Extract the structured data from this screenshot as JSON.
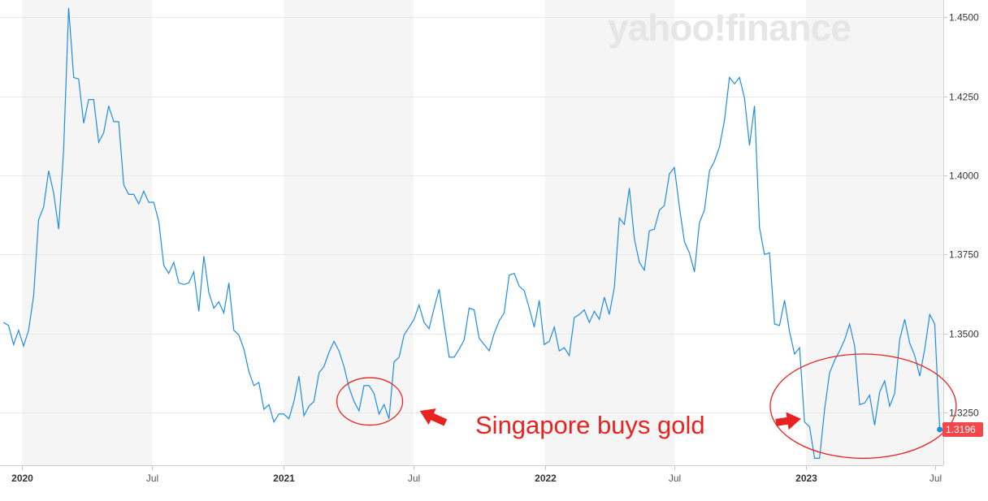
{
  "chart_data": {
    "type": "line",
    "series": [
      {
        "color": "#1f8de0",
        "points": [
          [
            "2019-12-06",
            1.3535
          ],
          [
            "2019-12-13",
            1.3525
          ],
          [
            "2019-12-20",
            1.3465
          ],
          [
            "2019-12-27",
            1.351
          ],
          [
            "2020-01-03",
            1.346
          ],
          [
            "2020-01-10",
            1.351
          ],
          [
            "2020-01-17",
            1.362
          ],
          [
            "2020-01-24",
            1.386
          ],
          [
            "2020-01-31",
            1.39
          ],
          [
            "2020-02-07",
            1.4015
          ],
          [
            "2020-02-14",
            1.3945
          ],
          [
            "2020-02-21",
            1.383
          ],
          [
            "2020-02-28",
            1.408
          ],
          [
            "2020-03-06",
            1.453
          ],
          [
            "2020-03-13",
            1.431
          ],
          [
            "2020-03-20",
            1.4305
          ],
          [
            "2020-03-27",
            1.4165
          ],
          [
            "2020-04-03",
            1.424
          ],
          [
            "2020-04-10",
            1.424
          ],
          [
            "2020-04-17",
            1.4105
          ],
          [
            "2020-04-24",
            1.4135
          ],
          [
            "2020-05-01",
            1.422
          ],
          [
            "2020-05-08",
            1.417
          ],
          [
            "2020-05-15",
            1.417
          ],
          [
            "2020-05-22",
            1.397
          ],
          [
            "2020-05-29",
            1.394
          ],
          [
            "2020-06-05",
            1.394
          ],
          [
            "2020-06-12",
            1.391
          ],
          [
            "2020-06-19",
            1.395
          ],
          [
            "2020-06-26",
            1.3915
          ],
          [
            "2020-07-03",
            1.3915
          ],
          [
            "2020-07-10",
            1.3855
          ],
          [
            "2020-07-17",
            1.3715
          ],
          [
            "2020-07-24",
            1.369
          ],
          [
            "2020-07-31",
            1.3725
          ],
          [
            "2020-08-07",
            1.366
          ],
          [
            "2020-08-14",
            1.3655
          ],
          [
            "2020-08-21",
            1.366
          ],
          [
            "2020-08-28",
            1.3695
          ],
          [
            "2020-09-04",
            1.357
          ],
          [
            "2020-09-11",
            1.3745
          ],
          [
            "2020-09-18",
            1.363
          ],
          [
            "2020-09-25",
            1.358
          ],
          [
            "2020-10-02",
            1.36
          ],
          [
            "2020-10-09",
            1.3565
          ],
          [
            "2020-10-16",
            1.366
          ],
          [
            "2020-10-23",
            1.351
          ],
          [
            "2020-10-30",
            1.3495
          ],
          [
            "2020-11-06",
            1.345
          ],
          [
            "2020-11-13",
            1.338
          ],
          [
            "2020-11-20",
            1.3335
          ],
          [
            "2020-11-27",
            1.3345
          ],
          [
            "2020-12-04",
            1.326
          ],
          [
            "2020-12-11",
            1.3275
          ],
          [
            "2020-12-18",
            1.322
          ],
          [
            "2020-12-25",
            1.3245
          ],
          [
            "2021-01-01",
            1.3245
          ],
          [
            "2021-01-08",
            1.323
          ],
          [
            "2021-01-15",
            1.3285
          ],
          [
            "2021-01-22",
            1.3365
          ],
          [
            "2021-01-29",
            1.324
          ],
          [
            "2021-02-05",
            1.327
          ],
          [
            "2021-02-12",
            1.3285
          ],
          [
            "2021-02-19",
            1.3375
          ],
          [
            "2021-02-26",
            1.3395
          ],
          [
            "2021-03-05",
            1.344
          ],
          [
            "2021-03-12",
            1.3475
          ],
          [
            "2021-03-19",
            1.3445
          ],
          [
            "2021-03-26",
            1.3395
          ],
          [
            "2021-04-02",
            1.333
          ],
          [
            "2021-04-09",
            1.3285
          ],
          [
            "2021-04-16",
            1.3255
          ],
          [
            "2021-04-23",
            1.3335
          ],
          [
            "2021-04-30",
            1.3335
          ],
          [
            "2021-05-07",
            1.331
          ],
          [
            "2021-05-14",
            1.3245
          ],
          [
            "2021-05-21",
            1.3275
          ],
          [
            "2021-05-28",
            1.323
          ],
          [
            "2021-06-04",
            1.341
          ],
          [
            "2021-06-11",
            1.3425
          ],
          [
            "2021-06-18",
            1.3495
          ],
          [
            "2021-06-25",
            1.352
          ],
          [
            "2021-07-02",
            1.3545
          ],
          [
            "2021-07-09",
            1.359
          ],
          [
            "2021-07-16",
            1.3535
          ],
          [
            "2021-07-23",
            1.3515
          ],
          [
            "2021-07-30",
            1.358
          ],
          [
            "2021-08-06",
            1.364
          ],
          [
            "2021-08-13",
            1.353
          ],
          [
            "2021-08-20",
            1.3425
          ],
          [
            "2021-08-27",
            1.3425
          ],
          [
            "2021-09-03",
            1.345
          ],
          [
            "2021-09-10",
            1.348
          ],
          [
            "2021-09-17",
            1.358
          ],
          [
            "2021-09-24",
            1.3575
          ],
          [
            "2021-10-01",
            1.3485
          ],
          [
            "2021-10-08",
            1.3465
          ],
          [
            "2021-10-15",
            1.3445
          ],
          [
            "2021-10-22",
            1.35
          ],
          [
            "2021-10-29",
            1.354
          ],
          [
            "2021-11-05",
            1.3565
          ],
          [
            "2021-11-12",
            1.3685
          ],
          [
            "2021-11-19",
            1.369
          ],
          [
            "2021-11-26",
            1.365
          ],
          [
            "2021-12-03",
            1.3635
          ],
          [
            "2021-12-10",
            1.358
          ],
          [
            "2021-12-17",
            1.352
          ],
          [
            "2021-12-24",
            1.3605
          ],
          [
            "2021-12-31",
            1.3465
          ],
          [
            "2022-01-07",
            1.3475
          ],
          [
            "2022-01-14",
            1.352
          ],
          [
            "2022-01-21",
            1.3445
          ],
          [
            "2022-01-28",
            1.3455
          ],
          [
            "2022-02-04",
            1.343
          ],
          [
            "2022-02-11",
            1.355
          ],
          [
            "2022-02-18",
            1.356
          ],
          [
            "2022-02-25",
            1.3575
          ],
          [
            "2022-03-04",
            1.3535
          ],
          [
            "2022-03-11",
            1.357
          ],
          [
            "2022-03-18",
            1.3545
          ],
          [
            "2022-03-25",
            1.3615
          ],
          [
            "2022-04-01",
            1.356
          ],
          [
            "2022-04-08",
            1.3645
          ],
          [
            "2022-04-15",
            1.3865
          ],
          [
            "2022-04-22",
            1.3845
          ],
          [
            "2022-04-29",
            1.396
          ],
          [
            "2022-05-06",
            1.38
          ],
          [
            "2022-05-13",
            1.3725
          ],
          [
            "2022-05-20",
            1.37
          ],
          [
            "2022-05-27",
            1.3825
          ],
          [
            "2022-06-03",
            1.383
          ],
          [
            "2022-06-10",
            1.389
          ],
          [
            "2022-06-17",
            1.3905
          ],
          [
            "2022-06-24",
            1.4005
          ],
          [
            "2022-07-01",
            1.4025
          ],
          [
            "2022-07-08",
            1.39
          ],
          [
            "2022-07-15",
            1.379
          ],
          [
            "2022-07-22",
            1.3755
          ],
          [
            "2022-07-29",
            1.3695
          ],
          [
            "2022-08-05",
            1.385
          ],
          [
            "2022-08-12",
            1.389
          ],
          [
            "2022-08-19",
            1.4015
          ],
          [
            "2022-08-26",
            1.4045
          ],
          [
            "2022-09-02",
            1.409
          ],
          [
            "2022-09-09",
            1.4175
          ],
          [
            "2022-09-16",
            1.431
          ],
          [
            "2022-09-23",
            1.429
          ],
          [
            "2022-09-30",
            1.431
          ],
          [
            "2022-10-07",
            1.4245
          ],
          [
            "2022-10-14",
            1.4095
          ],
          [
            "2022-10-21",
            1.422
          ],
          [
            "2022-10-28",
            1.3835
          ],
          [
            "2022-11-04",
            1.375
          ],
          [
            "2022-11-11",
            1.3755
          ],
          [
            "2022-11-18",
            1.353
          ],
          [
            "2022-11-25",
            1.3525
          ],
          [
            "2022-12-02",
            1.3605
          ],
          [
            "2022-12-09",
            1.3505
          ],
          [
            "2022-12-16",
            1.3435
          ],
          [
            "2022-12-23",
            1.3455
          ],
          [
            "2022-12-30",
            1.322
          ],
          [
            "2023-01-06",
            1.3205
          ],
          [
            "2023-01-13",
            1.3105
          ],
          [
            "2023-01-20",
            1.3105
          ],
          [
            "2023-01-27",
            1.326
          ],
          [
            "2023-02-03",
            1.3375
          ],
          [
            "2023-02-10",
            1.3415
          ],
          [
            "2023-02-17",
            1.3445
          ],
          [
            "2023-02-24",
            1.348
          ],
          [
            "2023-03-03",
            1.353
          ],
          [
            "2023-03-10",
            1.346
          ],
          [
            "2023-03-17",
            1.3275
          ],
          [
            "2023-03-24",
            1.328
          ],
          [
            "2023-03-31",
            1.3305
          ],
          [
            "2023-04-07",
            1.321
          ],
          [
            "2023-04-14",
            1.3315
          ],
          [
            "2023-04-21",
            1.335
          ],
          [
            "2023-04-28",
            1.327
          ],
          [
            "2023-05-05",
            1.331
          ],
          [
            "2023-05-12",
            1.348
          ],
          [
            "2023-05-19",
            1.3545
          ],
          [
            "2023-05-26",
            1.347
          ],
          [
            "2023-06-02",
            1.343
          ],
          [
            "2023-06-09",
            1.3365
          ],
          [
            "2023-06-16",
            1.345
          ],
          [
            "2023-06-23",
            1.356
          ],
          [
            "2023-06-30",
            1.353
          ],
          [
            "2023-07-07",
            1.3196
          ]
        ]
      }
    ],
    "x_ticks": [
      {
        "date": "2020-01-01",
        "label": "2020",
        "bold": true
      },
      {
        "date": "2020-07-01",
        "label": "Jul",
        "bold": false
      },
      {
        "date": "2021-01-01",
        "label": "2021",
        "bold": true
      },
      {
        "date": "2021-07-01",
        "label": "Jul",
        "bold": false
      },
      {
        "date": "2022-01-01",
        "label": "2022",
        "bold": true
      },
      {
        "date": "2022-07-01",
        "label": "Jul",
        "bold": false
      },
      {
        "date": "2023-01-01",
        "label": "2023",
        "bold": true
      },
      {
        "date": "2023-07-01",
        "label": "Jul",
        "bold": false
      }
    ],
    "y_ticks": [
      {
        "value": 1.325,
        "label": "1.3250"
      },
      {
        "value": 1.35,
        "label": "1.3500"
      },
      {
        "value": 1.375,
        "label": "1.3750"
      },
      {
        "value": 1.4,
        "label": "1.4000"
      },
      {
        "value": 1.425,
        "label": "1.4250"
      },
      {
        "value": 1.45,
        "label": "1.4500"
      }
    ],
    "ylim": [
      1.3083,
      1.4555
    ],
    "xlim": [
      "2019-12-01",
      "2023-07-12"
    ],
    "y_axis_side": "right",
    "grid": true,
    "shaded_bands": [
      [
        "2020-01-01",
        "2020-07-01"
      ],
      [
        "2021-01-01",
        "2021-07-01"
      ],
      [
        "2022-01-01",
        "2022-07-01"
      ],
      [
        "2023-01-01",
        "2023-07-12"
      ]
    ],
    "last_value_label": "1.3196",
    "last_value": 1.3196,
    "annotations": {
      "text": "Singapore buys gold",
      "color": "#e8231f",
      "ellipses": [
        {
          "center_date": "2021-05-01",
          "center_value": 1.3285,
          "half_width_days": 46,
          "half_height": 0.0075
        },
        {
          "center_date": "2023-03-22",
          "center_value": 1.327,
          "half_width_days": 130,
          "half_height": 0.0165
        }
      ],
      "arrows": [
        {
          "from_date": "2021-08-15",
          "from_value": 1.3218,
          "to_date": "2021-07-10",
          "to_value": 1.3255
        },
        {
          "from_date": "2022-11-20",
          "from_value": 1.3218,
          "to_date": "2022-12-25",
          "to_value": 1.323
        }
      ]
    }
  },
  "watermark": {
    "text": "yahoo!finance"
  }
}
